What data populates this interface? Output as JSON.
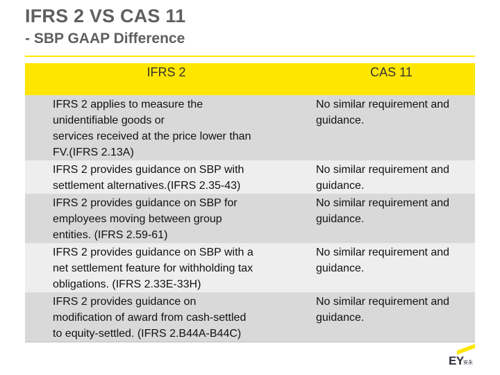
{
  "slide": {
    "title_line1": "IFRS 2 VS CAS 11",
    "title_line2": "- SBP GAAP Difference"
  },
  "table": {
    "headers": [
      "IFRS 2",
      "CAS 11"
    ],
    "rows": [
      {
        "ifrs": "IFRS 2 applies to measure the unidentifiable goods or services received at the price lower than FV.(IFRS 2.13A)",
        "ifrs_lines": [
          "IFRS 2 applies to measure the",
          "unidentifiable goods or",
          "services received at the price lower than",
          "FV.(IFRS 2.13A)"
        ],
        "cas": "No similar requirement and guidance."
      },
      {
        "ifrs": "IFRS 2 provides guidance on SBP with settlement alternatives.(IFRS 2.35-43)",
        "ifrs_lines": [
          "IFRS 2 provides guidance on SBP with",
          "settlement alternatives.(IFRS 2.35-43)"
        ],
        "cas": "No similar requirement and guidance."
      },
      {
        "ifrs": "IFRS 2 provides guidance on SBP for employees moving  between group entities. (IFRS 2.59-61)",
        "ifrs_lines": [
          "IFRS 2 provides guidance on SBP for",
          "employees moving  between group",
          "entities. (IFRS 2.59-61)"
        ],
        "cas": "No similar requirement and guidance."
      },
      {
        "ifrs": "IFRS 2 provides guidance on SBP with a net settlement feature for withholding tax obligations. (IFRS 2.33E-33H)",
        "ifrs_lines": [
          "IFRS 2 provides guidance on SBP with a",
          "net settlement feature for withholding tax",
          "obligations. (IFRS 2.33E-33H)"
        ],
        "cas": "No similar requirement and guidance."
      },
      {
        "ifrs": "IFRS 2 provides guidance on modification of award from cash-settled to equity-settled. (IFRS 2.B44A-B44C)",
        "ifrs_lines": [
          "IFRS 2 provides guidance on",
          "modification of award from cash-settled",
          "to equity-settled. (IFRS 2.B44A-B44C)"
        ],
        "cas": "No similar requirement and guidance."
      }
    ]
  },
  "logo": {
    "brand": "EY",
    "subtext": "安永"
  },
  "colors": {
    "accent": "#ffe600",
    "title": "#5f5f5f",
    "row_dark": "#d9d9d9",
    "row_light": "#eeeeee"
  }
}
